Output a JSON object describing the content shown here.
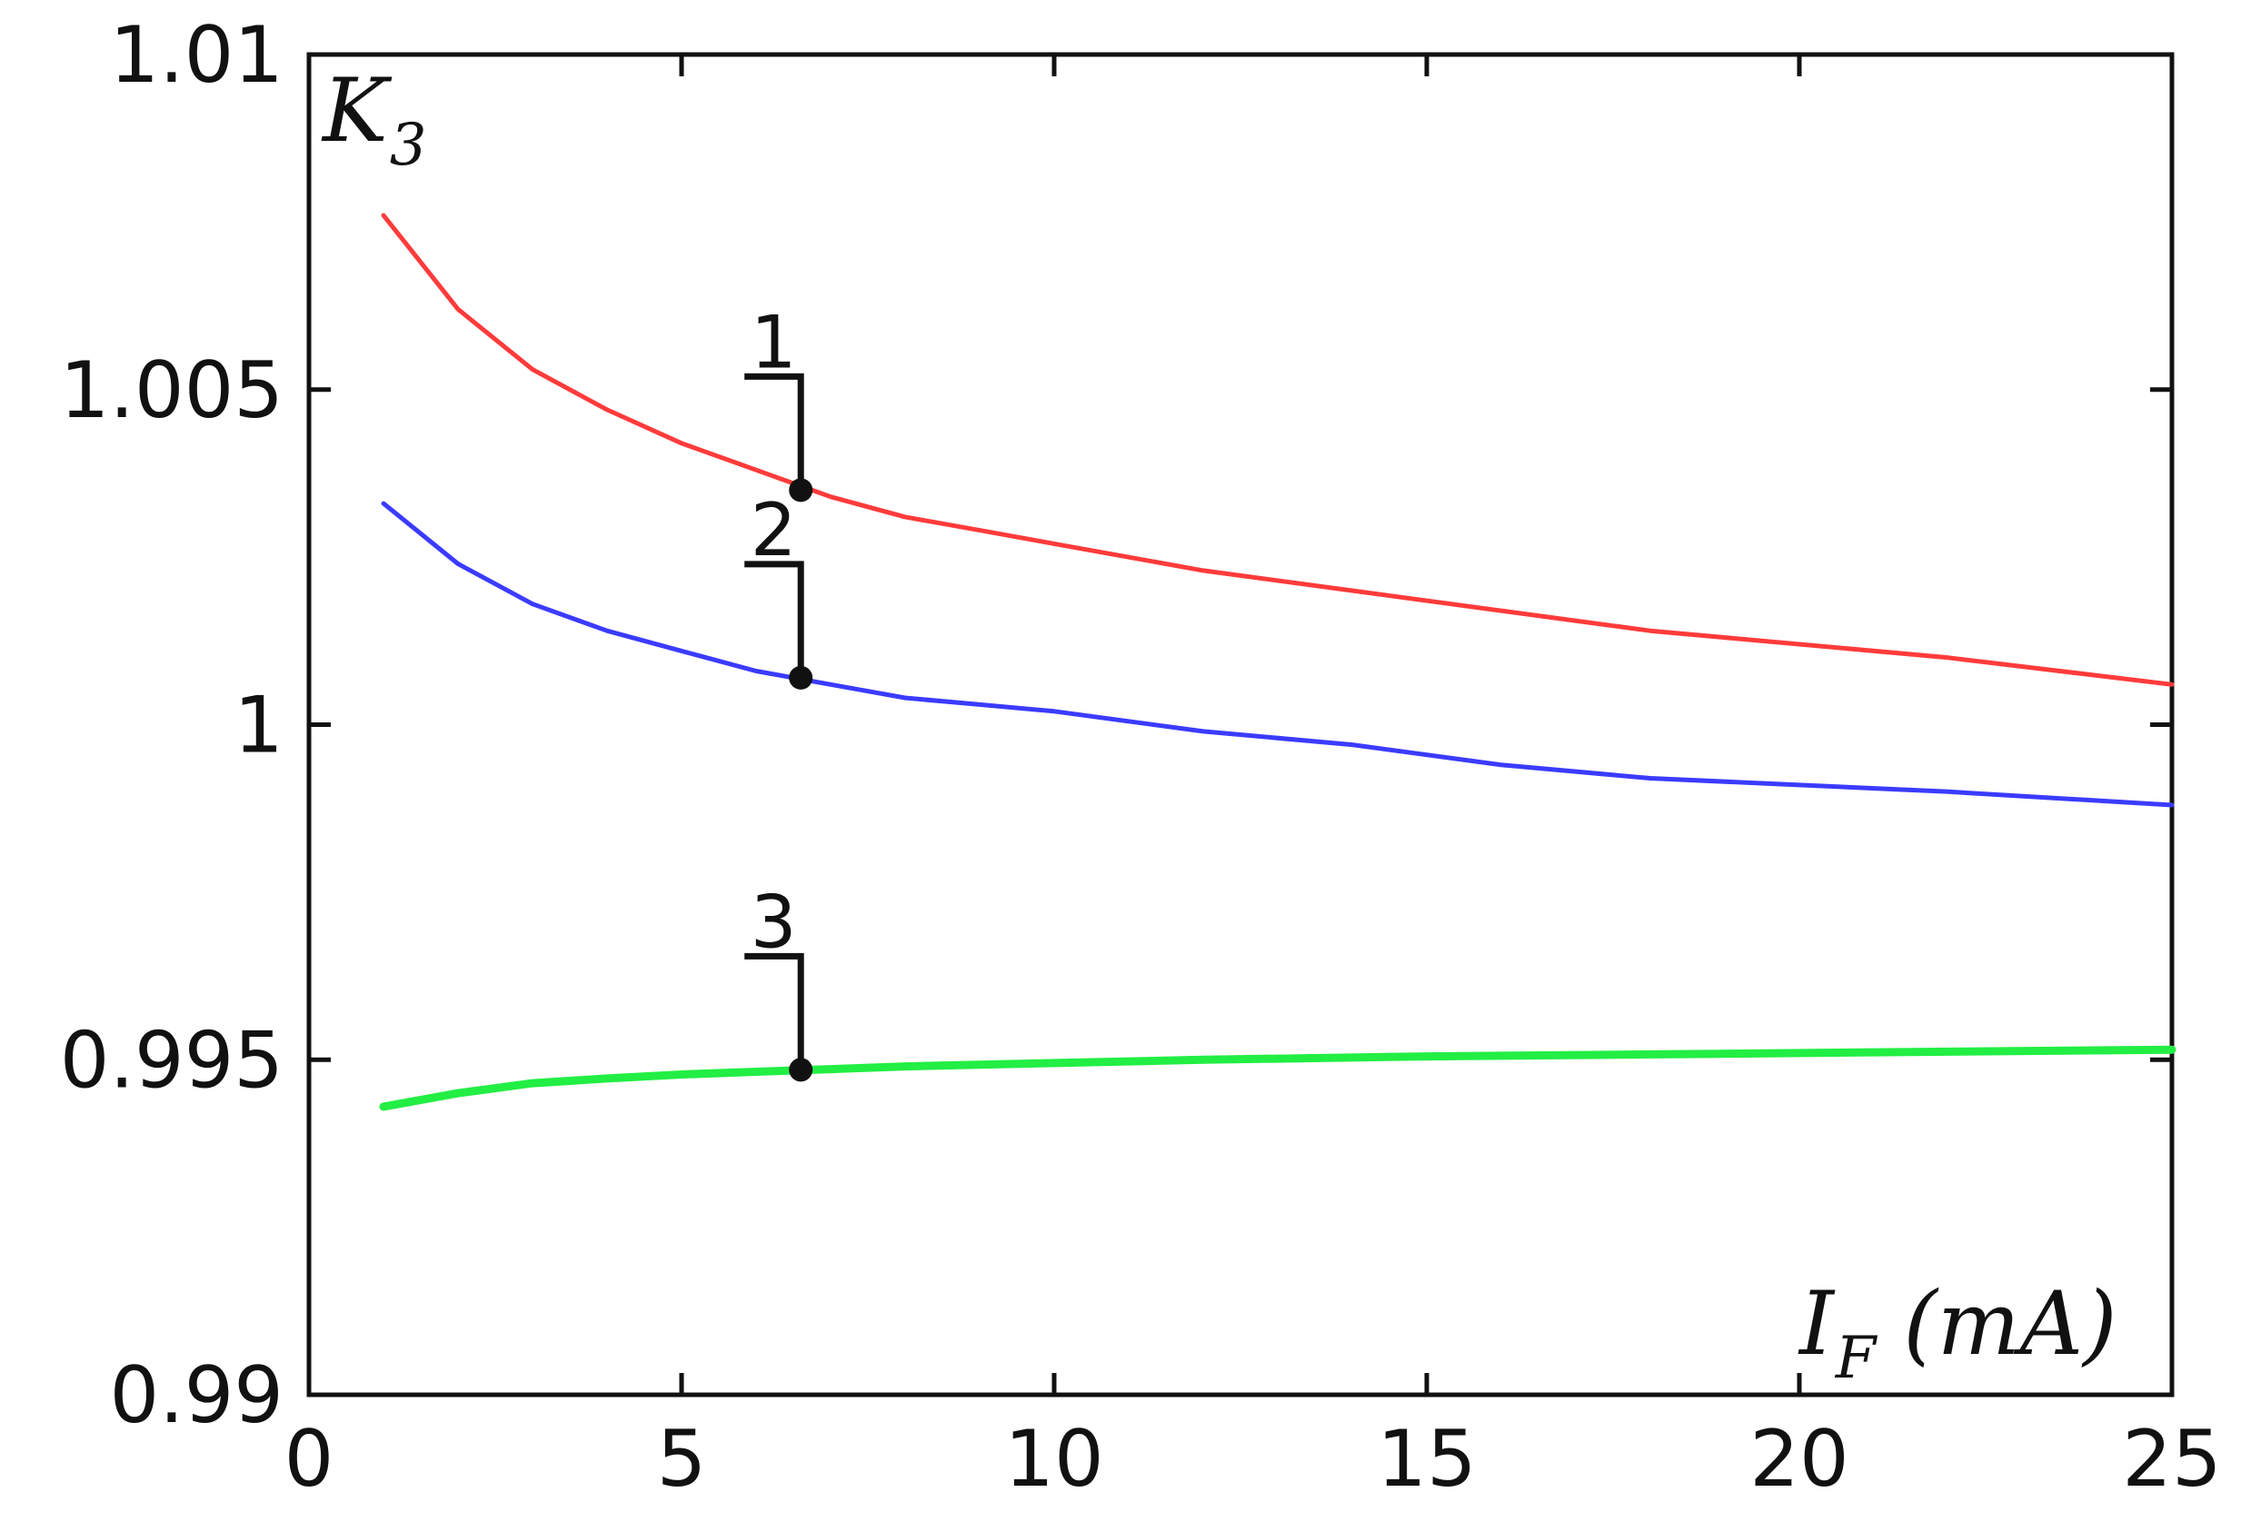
{
  "chart_data": {
    "type": "line",
    "xlim": [
      0,
      25
    ],
    "ylim": [
      0.99,
      1.01
    ],
    "x_ticks": [
      0,
      5,
      10,
      15,
      20,
      25
    ],
    "y_ticks": [
      0.99,
      0.995,
      1,
      1.005,
      1.01
    ],
    "x_tick_labels": [
      "0",
      "5",
      "10",
      "15",
      "20",
      "25"
    ],
    "y_tick_labels": [
      "0.99",
      "0.995",
      "1",
      "1.005",
      "1.01"
    ],
    "ylabel": {
      "main": "K",
      "sub": "3"
    },
    "xlabel": {
      "main": "I",
      "sub": "F",
      "unit": "(mA)"
    },
    "grid": false,
    "series": [
      {
        "label": "1",
        "color": "#ff3b3b",
        "x": [
          1,
          2,
          3,
          4,
          5,
          6,
          7,
          8,
          9,
          10,
          12,
          14,
          16,
          18,
          20,
          22,
          25
        ],
        "y": [
          1.0076,
          1.0062,
          1.0053,
          1.0047,
          1.0042,
          1.0038,
          1.0034,
          1.0031,
          1.0029,
          1.0027,
          1.0023,
          1.002,
          1.0017,
          1.0014,
          1.0012,
          1.001,
          1.0006
        ],
        "marker_x": 6.6,
        "marker_y": 1.0035
      },
      {
        "label": "2",
        "color": "#3b3bff",
        "x": [
          1,
          2,
          3,
          4,
          5,
          6,
          7,
          8,
          9,
          10,
          12,
          14,
          16,
          18,
          20,
          22,
          25
        ],
        "y": [
          1.0033,
          1.0024,
          1.0018,
          1.0014,
          1.0011,
          1.0008,
          1.0006,
          1.0004,
          1.0003,
          1.0002,
          0.9999,
          0.9997,
          0.9994,
          0.9992,
          0.9991,
          0.999,
          0.9988
        ],
        "marker_x": 6.6,
        "marker_y": 1.0007
      },
      {
        "label": "3",
        "color": "#22ee44",
        "x": [
          1,
          2,
          3,
          4,
          5,
          6,
          7,
          8,
          10,
          12,
          15,
          18,
          20,
          22,
          25
        ],
        "y": [
          0.9943,
          0.9945,
          0.99465,
          0.99472,
          0.99478,
          0.99482,
          0.99486,
          0.9949,
          0.99495,
          0.995,
          0.99505,
          0.99508,
          0.9951,
          0.99512,
          0.99515
        ],
        "marker_x": 6.6,
        "marker_y": 0.99485
      }
    ]
  }
}
